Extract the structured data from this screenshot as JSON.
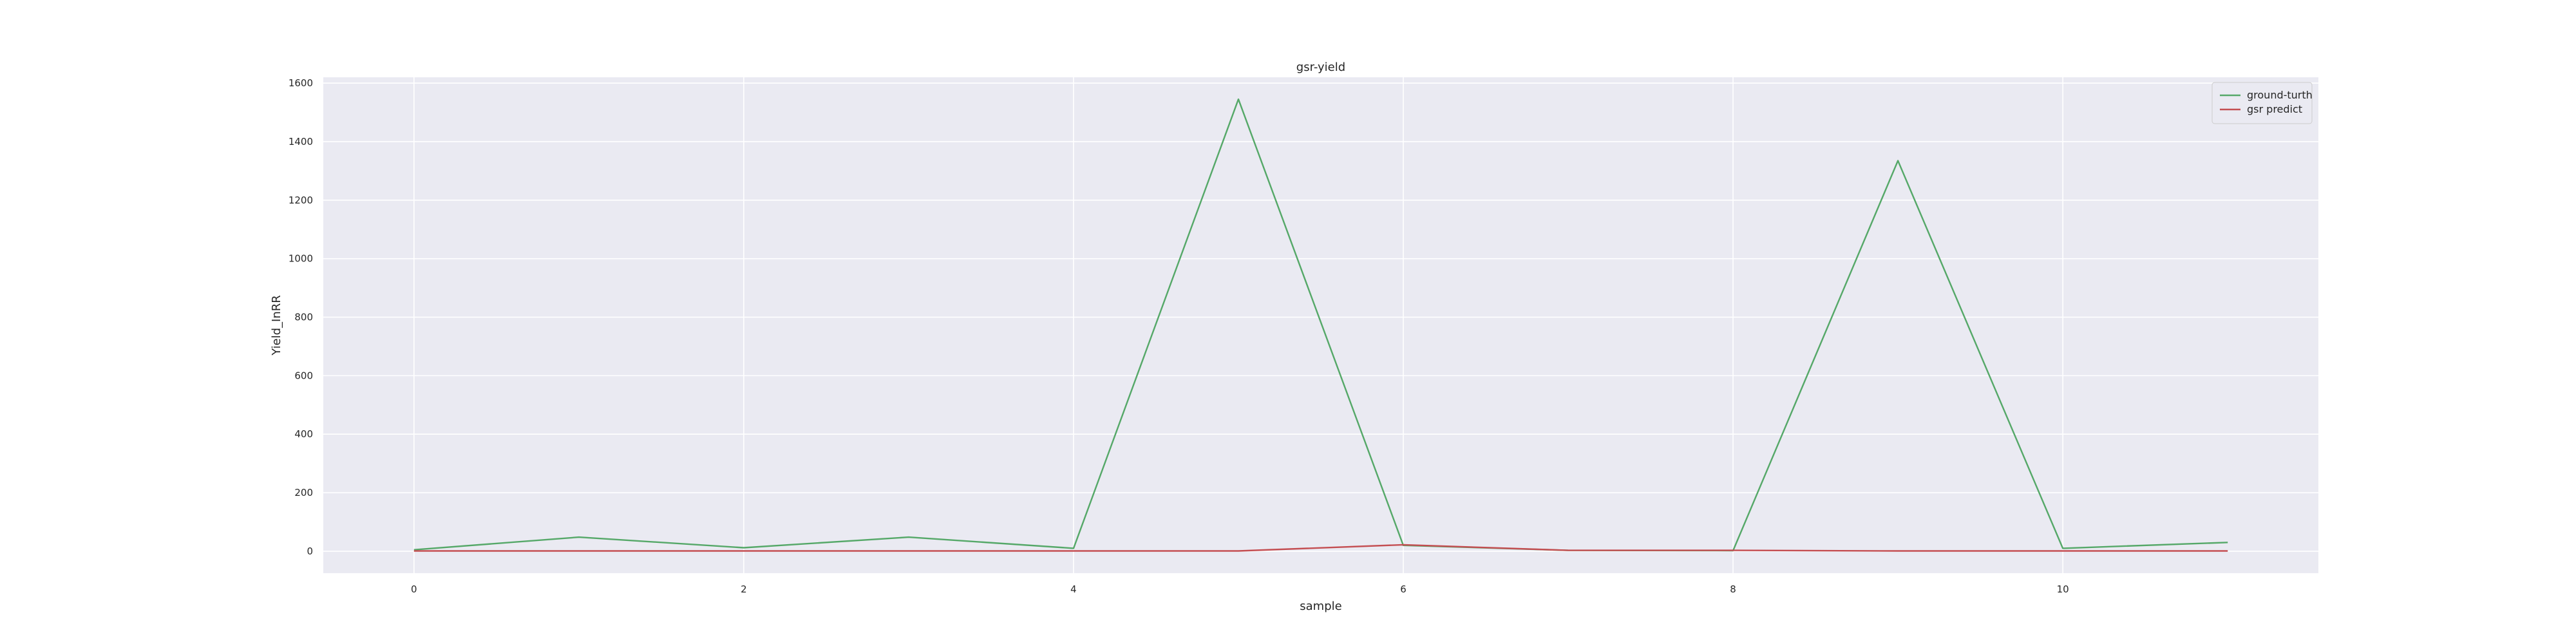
{
  "chart_data": {
    "type": "line",
    "title": "gsr-yield",
    "xlabel": "sample",
    "ylabel": "Yield_InRR",
    "x": [
      0,
      1,
      2,
      3,
      4,
      5,
      6,
      7,
      8,
      9,
      10,
      11
    ],
    "xlim": [
      -0.55,
      11.55
    ],
    "ylim": [
      -75,
      1620
    ],
    "x_ticks": [
      0,
      2,
      4,
      6,
      8,
      10
    ],
    "y_ticks": [
      0,
      200,
      400,
      600,
      800,
      1000,
      1200,
      1400,
      1600
    ],
    "grid": true,
    "legend_position": "top-right",
    "background": "#eaeaf2",
    "series": [
      {
        "name": "ground-turth",
        "color": "#55a868",
        "values": [
          5,
          48,
          12,
          48,
          10,
          1545,
          20,
          3,
          2,
          1335,
          10,
          30
        ]
      },
      {
        "name": "gsr predict",
        "color": "#c44e52",
        "values": [
          1,
          1,
          1,
          1,
          1,
          1,
          22,
          3,
          3,
          1,
          1,
          1
        ]
      }
    ]
  }
}
